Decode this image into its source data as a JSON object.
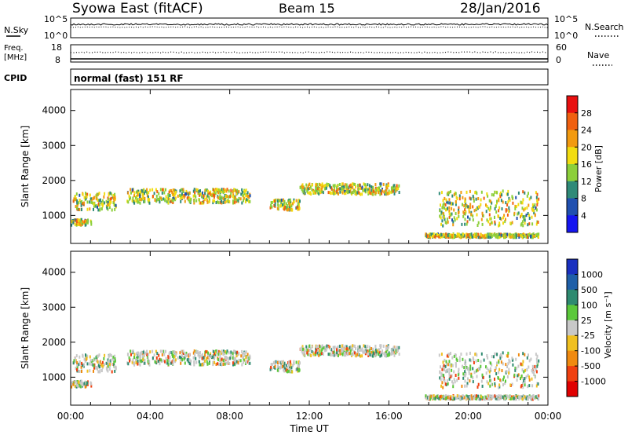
{
  "header": {
    "station": "Syowa East (fitACF)",
    "beam": "Beam 15",
    "date": "28/Jan/2016"
  },
  "top_panels": {
    "nsky_label": "N.Sky",
    "nsearch_label": "N.Search",
    "nsky_ticks": [
      "10^5",
      "10^0"
    ],
    "nsearch_ticks": [
      "10^5",
      "10^0"
    ],
    "freq_label": "Freq.",
    "freq_unit": "[MHz]",
    "freq_ticks": [
      "18",
      "8"
    ],
    "nave_label": "Nave",
    "nave_ticks": [
      "60",
      "0"
    ],
    "cpid_label": "CPID",
    "cpid_text": "normal (fast) 151 RF"
  },
  "power_colorbar": {
    "label": "Power [dB]",
    "ticks": [
      "28",
      "24",
      "20",
      "16",
      "12",
      "8",
      "4"
    ],
    "colors": [
      "#1515f0",
      "#2050b0",
      "#2f8a78",
      "#8ccf3a",
      "#f2dc10",
      "#f29a10",
      "#f06010",
      "#e81010"
    ]
  },
  "velocity_colorbar": {
    "label": "Velocity [m s⁻¹]",
    "ticks": [
      "1000",
      "500",
      "100",
      "25",
      "-25",
      "-100",
      "-500",
      "-1000"
    ],
    "colors": [
      "#1a30c0",
      "#1f5fa8",
      "#2e8a70",
      "#5bc83a",
      "#c8c8c8",
      "#f0c020",
      "#f08a10",
      "#f04010",
      "#e00000"
    ]
  },
  "chart_data": {
    "type": "heatmap",
    "xlabel": "Time UT",
    "ylabel": "Slant Range [km]",
    "x_ticks": [
      "00:00",
      "04:00",
      "08:00",
      "12:00",
      "16:00",
      "20:00",
      "00:00"
    ],
    "y_ticks": [
      "1000",
      "2000",
      "3000",
      "4000"
    ],
    "xlim": [
      0,
      24
    ],
    "ylim": [
      200,
      4600
    ],
    "scatter_regions": [
      {
        "t0": 0.1,
        "t1": 2.3,
        "r": 1400,
        "dr": 250
      },
      {
        "t0": 0.0,
        "t1": 1.0,
        "r": 800,
        "dr": 80
      },
      {
        "t0": 2.8,
        "t1": 9.0,
        "r": 1550,
        "dr": 200
      },
      {
        "t0": 10.0,
        "t1": 11.5,
        "r": 1300,
        "dr": 150
      },
      {
        "t0": 11.5,
        "t1": 16.5,
        "r": 1750,
        "dr": 150
      },
      {
        "t0": 17.8,
        "t1": 23.5,
        "r": 420,
        "dr": 50
      },
      {
        "t0": 18.5,
        "t1": 23.5,
        "r": 1200,
        "dr": 500
      }
    ],
    "power_samples_db": [
      6,
      10,
      14,
      18,
      20,
      16,
      12,
      8,
      22,
      14,
      10,
      18,
      24,
      12
    ],
    "velocity_samples_ms": [
      20,
      -20,
      10,
      -15,
      60,
      -80,
      150,
      -300,
      15,
      5,
      -10,
      30,
      400,
      -600
    ]
  }
}
